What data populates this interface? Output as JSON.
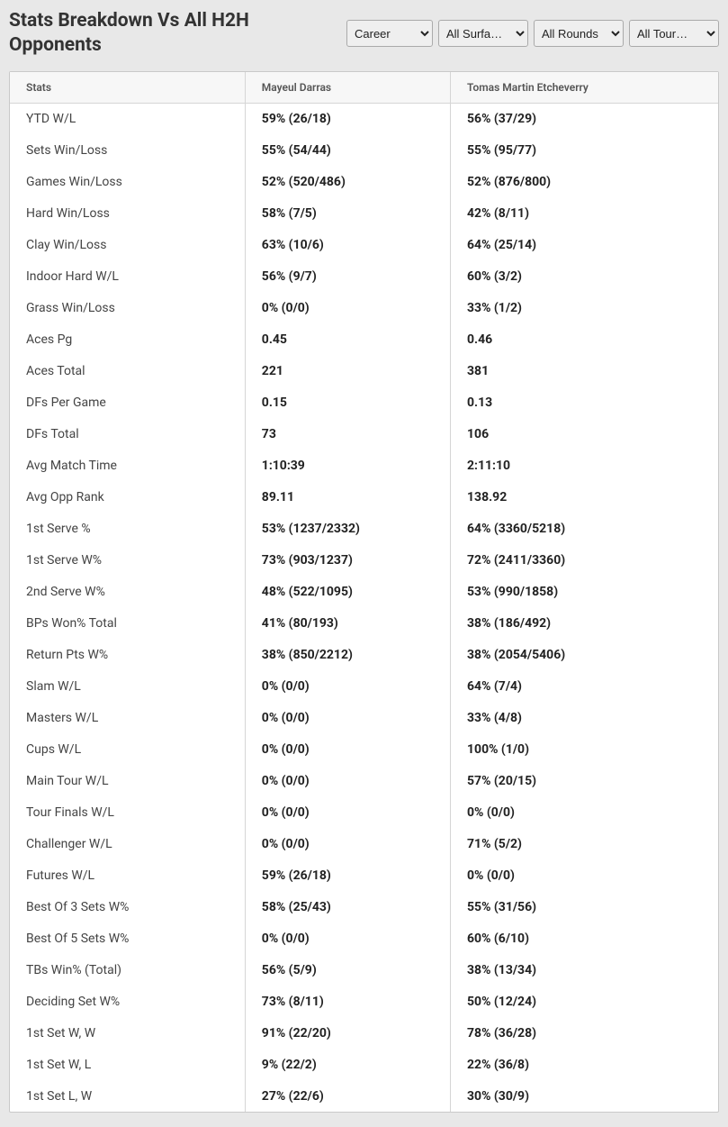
{
  "title": "Stats Breakdown Vs All H2H Opponents",
  "filters": {
    "career": "Career",
    "surface": "All Surfa…",
    "rounds": "All Rounds",
    "tour": "All Tour…"
  },
  "table": {
    "headers": {
      "stats": "Stats",
      "player1": "Mayeul Darras",
      "player2": "Tomas Martin Etcheverry"
    },
    "columns": [
      "stats",
      "player1",
      "player2"
    ],
    "rows": [
      [
        "YTD W/L",
        "59% (26/18)",
        "56% (37/29)"
      ],
      [
        "Sets Win/Loss",
        "55% (54/44)",
        "55% (95/77)"
      ],
      [
        "Games Win/Loss",
        "52% (520/486)",
        "52% (876/800)"
      ],
      [
        "Hard Win/Loss",
        "58% (7/5)",
        "42% (8/11)"
      ],
      [
        "Clay Win/Loss",
        "63% (10/6)",
        "64% (25/14)"
      ],
      [
        "Indoor Hard W/L",
        "56% (9/7)",
        "60% (3/2)"
      ],
      [
        "Grass Win/Loss",
        "0% (0/0)",
        "33% (1/2)"
      ],
      [
        "Aces Pg",
        "0.45",
        "0.46"
      ],
      [
        "Aces Total",
        "221",
        "381"
      ],
      [
        "DFs Per Game",
        "0.15",
        "0.13"
      ],
      [
        "DFs Total",
        "73",
        "106"
      ],
      [
        "Avg Match Time",
        "1:10:39",
        "2:11:10"
      ],
      [
        "Avg Opp Rank",
        "89.11",
        "138.92"
      ],
      [
        "1st Serve %",
        "53% (1237/2332)",
        "64% (3360/5218)"
      ],
      [
        "1st Serve W%",
        "73% (903/1237)",
        "72% (2411/3360)"
      ],
      [
        "2nd Serve W%",
        "48% (522/1095)",
        "53% (990/1858)"
      ],
      [
        "BPs Won% Total",
        "41% (80/193)",
        "38% (186/492)"
      ],
      [
        "Return Pts W%",
        "38% (850/2212)",
        "38% (2054/5406)"
      ],
      [
        "Slam W/L",
        "0% (0/0)",
        "64% (7/4)"
      ],
      [
        "Masters W/L",
        "0% (0/0)",
        "33% (4/8)"
      ],
      [
        "Cups W/L",
        "0% (0/0)",
        "100% (1/0)"
      ],
      [
        "Main Tour W/L",
        "0% (0/0)",
        "57% (20/15)"
      ],
      [
        "Tour Finals W/L",
        "0% (0/0)",
        "0% (0/0)"
      ],
      [
        "Challenger W/L",
        "0% (0/0)",
        "71% (5/2)"
      ],
      [
        "Futures W/L",
        "59% (26/18)",
        "0% (0/0)"
      ],
      [
        "Best Of 3 Sets W%",
        "58% (25/43)",
        "55% (31/56)"
      ],
      [
        "Best Of 5 Sets W%",
        "0% (0/0)",
        "60% (6/10)"
      ],
      [
        "TBs Win% (Total)",
        "56% (5/9)",
        "38% (13/34)"
      ],
      [
        "Deciding Set W%",
        "73% (8/11)",
        "50% (12/24)"
      ],
      [
        "1st Set W, W",
        "91% (22/20)",
        "78% (36/28)"
      ],
      [
        "1st Set W, L",
        "9% (22/2)",
        "22% (36/8)"
      ],
      [
        "1st Set L, W",
        "27% (22/6)",
        "30% (30/9)"
      ]
    ]
  },
  "colors": {
    "page_bg": "#e8e8e8",
    "panel_bg": "#ffffff",
    "border": "#c9c9c9",
    "header_bg": "#f7f7f7",
    "text": "#333333",
    "label_text": "#444444",
    "value_text": "#222222"
  }
}
